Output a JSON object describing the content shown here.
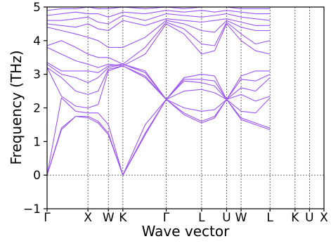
{
  "chart_data": {
    "type": "line",
    "xlabel": "Wave vector",
    "ylabel": "Frequency (THz)",
    "ylim": [
      -1,
      5
    ],
    "yticks": [
      -1,
      0,
      1,
      2,
      3,
      4,
      5
    ],
    "ytick_labels": [
      "−1",
      "0",
      "1",
      "2",
      "3",
      "4",
      "5"
    ],
    "kpoints": [
      {
        "label": "Γ",
        "x": 0.0
      },
      {
        "label": "X",
        "x": 1.0
      },
      {
        "label": "W",
        "x": 1.5
      },
      {
        "label": "K",
        "x": 1.854
      },
      {
        "label": "Γ",
        "x": 2.915
      },
      {
        "label": "L",
        "x": 3.781
      },
      {
        "label": "U",
        "x": 4.393
      },
      {
        "label": "W",
        "x": 4.747
      },
      {
        "label": "L",
        "x": 5.454
      },
      {
        "label": "K",
        "x": 6.067
      },
      {
        "label": "U",
        "x": 6.421
      },
      {
        "label": "X",
        "x": 6.775
      }
    ],
    "band_color": "#9b55f5",
    "zero_line": true,
    "high_symmetry_lines": true,
    "series": [
      {
        "values": [
          0.0,
          1.35,
          1.75,
          1.7,
          1.55,
          1.2,
          0.0,
          1.2,
          2.25,
          1.8,
          1.55,
          1.7,
          2.25,
          1.65,
          1.5,
          1.35
        ]
      },
      {
        "values": [
          0.0,
          1.4,
          1.75,
          1.75,
          1.6,
          1.25,
          0.0,
          1.25,
          2.25,
          1.85,
          1.6,
          1.75,
          2.25,
          1.7,
          1.55,
          1.4
        ]
      },
      {
        "values": [
          0.0,
          2.3,
          1.9,
          1.85,
          1.85,
          1.5,
          0.0,
          1.5,
          2.25,
          2.0,
          1.9,
          1.95,
          2.25,
          1.9,
          1.85,
          2.3
        ]
      },
      {
        "values": [
          3.2,
          2.35,
          2.05,
          2.0,
          2.1,
          3.1,
          3.25,
          2.9,
          2.25,
          2.5,
          2.55,
          2.45,
          2.25,
          2.4,
          2.2,
          2.35
        ]
      },
      {
        "values": [
          3.2,
          2.9,
          2.5,
          2.4,
          2.5,
          3.15,
          3.25,
          2.95,
          2.25,
          2.8,
          2.75,
          2.65,
          2.25,
          2.6,
          2.5,
          2.9
        ]
      },
      {
        "values": [
          3.3,
          3.0,
          2.9,
          2.75,
          2.9,
          3.2,
          3.3,
          3.05,
          2.25,
          2.85,
          2.85,
          2.8,
          2.25,
          2.85,
          2.8,
          3.0
        ]
      },
      {
        "values": [
          3.35,
          3.1,
          3.1,
          3.1,
          3.05,
          3.25,
          3.3,
          3.1,
          2.25,
          2.9,
          3.0,
          2.95,
          2.25,
          2.95,
          3.1,
          3.1
        ]
      },
      {
        "values": [
          3.8,
          3.6,
          3.4,
          3.3,
          3.2,
          3.3,
          3.25,
          3.6,
          4.5,
          4.2,
          3.6,
          3.7,
          4.5,
          4.0,
          3.7,
          3.6
        ]
      },
      {
        "values": [
          3.85,
          4.0,
          3.8,
          3.6,
          3.5,
          3.5,
          3.3,
          3.8,
          4.55,
          4.35,
          3.9,
          3.85,
          4.55,
          4.2,
          3.9,
          4.0
        ]
      },
      {
        "values": [
          4.4,
          4.3,
          4.2,
          4.1,
          4.0,
          3.8,
          3.8,
          4.1,
          4.6,
          4.5,
          4.3,
          4.25,
          4.6,
          4.4,
          4.3,
          4.3
        ]
      },
      {
        "values": [
          4.5,
          4.45,
          4.4,
          4.5,
          4.35,
          4.3,
          4.6,
          4.45,
          4.65,
          4.6,
          4.55,
          4.6,
          4.65,
          4.55,
          4.45,
          4.45
        ]
      },
      {
        "values": [
          4.6,
          4.6,
          4.65,
          4.7,
          4.55,
          4.5,
          4.75,
          4.6,
          4.8,
          4.75,
          4.7,
          4.75,
          4.8,
          4.7,
          4.65,
          4.6
        ]
      },
      {
        "values": [
          4.75,
          4.8,
          4.85,
          4.8,
          4.8,
          4.7,
          4.85,
          4.8,
          4.9,
          4.85,
          4.9,
          4.85,
          4.9,
          4.85,
          4.8,
          4.8
        ]
      },
      {
        "values": [
          4.9,
          4.95,
          4.95,
          5.0,
          4.95,
          4.95,
          5.0,
          4.95,
          5.0,
          4.95,
          5.0,
          5.0,
          5.0,
          4.95,
          4.95,
          4.95
        ]
      }
    ],
    "series_x": [
      0.0,
      0.35,
      0.7,
      1.0,
      1.25,
      1.5,
      1.854,
      2.4,
      2.915,
      3.35,
      3.781,
      4.1,
      4.393,
      4.747,
      5.1,
      5.454
    ]
  }
}
